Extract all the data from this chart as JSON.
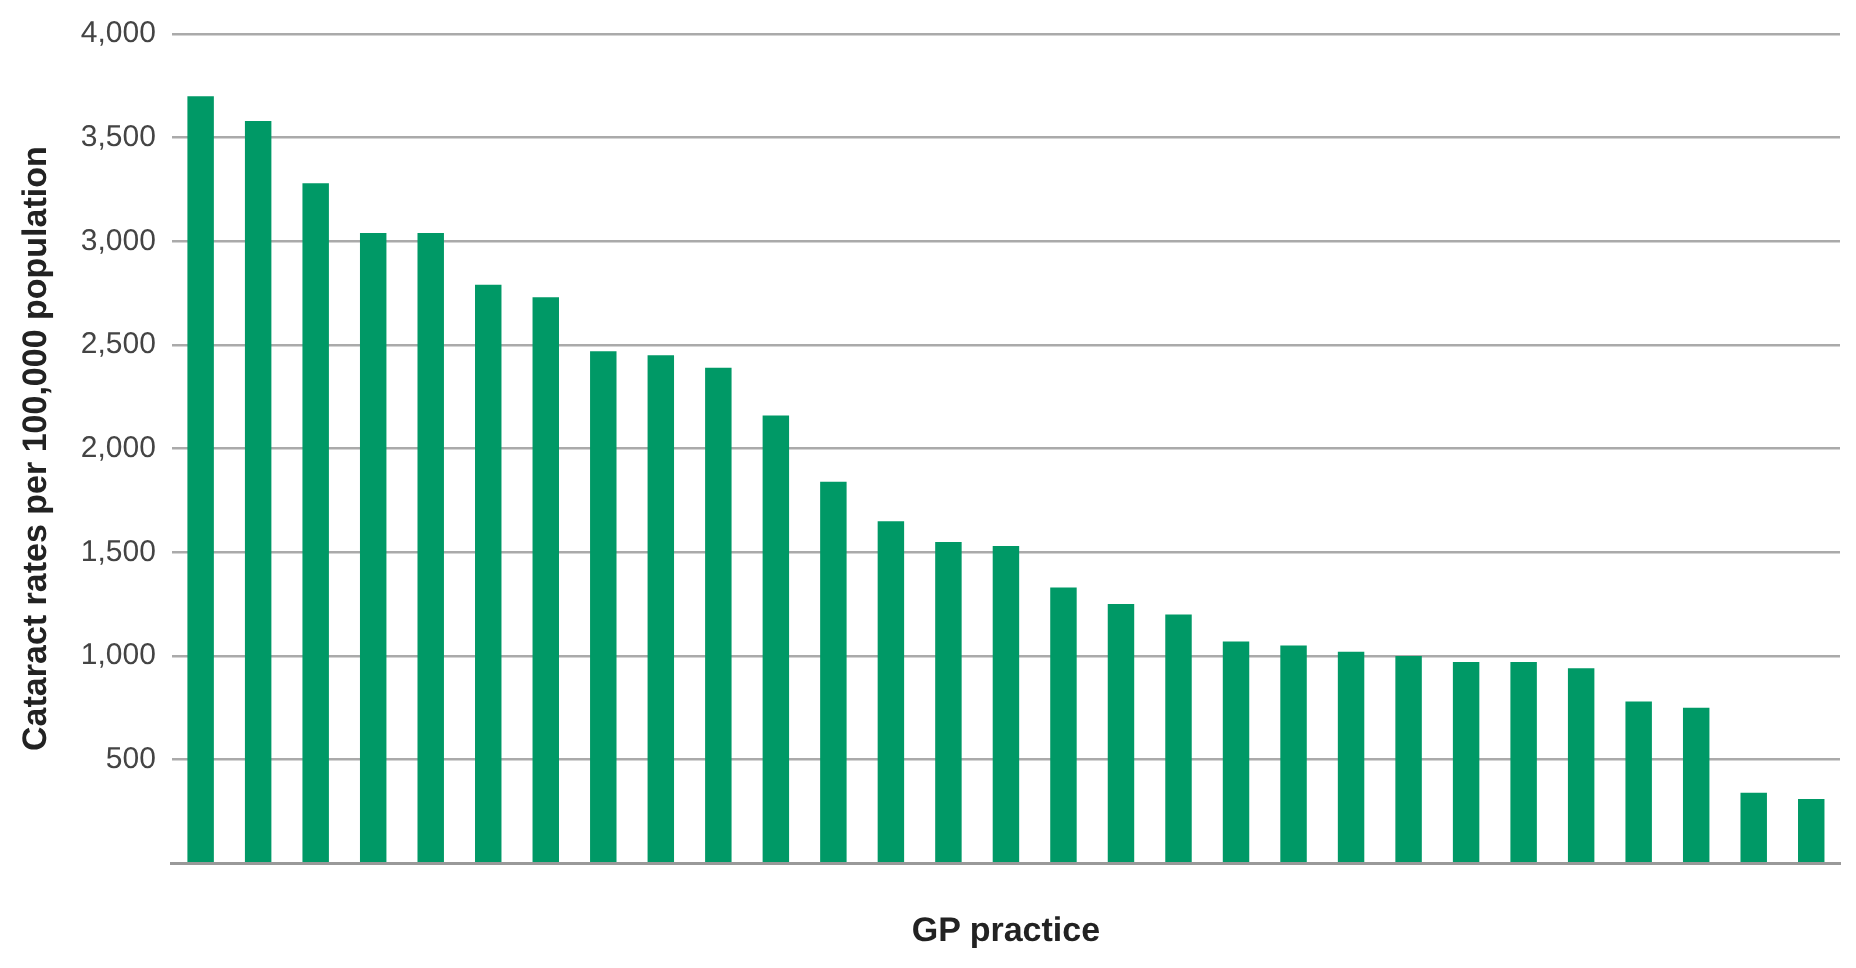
{
  "chart_data": {
    "type": "bar",
    "xlabel": "GP practice",
    "ylabel": "Cataract rates per 100,000 population",
    "categories": [
      null,
      null,
      null,
      null,
      null,
      null,
      null,
      null,
      null,
      null,
      null,
      null,
      null,
      null,
      null,
      null,
      null,
      null,
      null,
      null,
      null,
      null,
      null,
      null,
      null,
      null,
      null,
      null,
      null
    ],
    "values": [
      3700,
      3580,
      3280,
      3040,
      3040,
      2790,
      2730,
      2470,
      2450,
      2390,
      2160,
      1840,
      1650,
      1550,
      1530,
      1330,
      1250,
      1200,
      1070,
      1050,
      1020,
      1000,
      970,
      970,
      940,
      780,
      750,
      340,
      310
    ],
    "color": "#009966",
    "ylim": [
      0,
      4000
    ],
    "yticks": [
      {
        "value": 0,
        "label": null
      },
      {
        "value": 500,
        "label": "500"
      },
      {
        "value": 1000,
        "label": "1,000"
      },
      {
        "value": 1500,
        "label": "1,500"
      },
      {
        "value": 2000,
        "label": "2,000"
      },
      {
        "value": 2500,
        "label": "2,500"
      },
      {
        "value": 3000,
        "label": "3,000"
      },
      {
        "value": 3500,
        "label": "3,500"
      },
      {
        "value": 4000,
        "label": "4,000"
      }
    ],
    "grid": "y",
    "legend": false
  }
}
